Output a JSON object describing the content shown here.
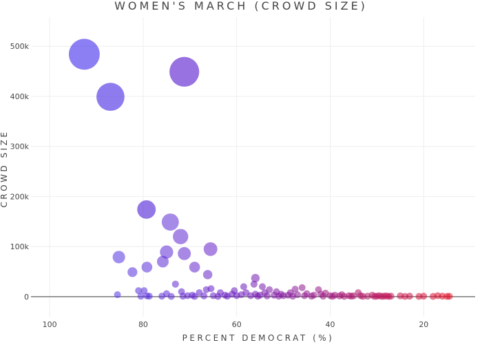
{
  "chart_data": {
    "type": "scatter",
    "title": "WOMEN'S MARCH (CROWD SIZE)",
    "xlabel": "PERCENT DEMOCRAT (%)",
    "ylabel": "CROWD SIZE",
    "xlim": [
      104,
      9
    ],
    "ylim": [
      -40000,
      558000
    ],
    "x_reversed": true,
    "grid": true,
    "marker_size_encodes": "crowd size",
    "marker_color_encodes": "percent democrat",
    "colors": {
      "high_democrat": "#4b3cf0",
      "mid": "#6a1cc0",
      "low_democrat": "#e0102a",
      "zeroline": "#777777",
      "grid": "#eeeeee"
    },
    "xticks": [
      {
        "v": 100,
        "label": "100"
      },
      {
        "v": 80,
        "label": "80"
      },
      {
        "v": 60,
        "label": "60"
      },
      {
        "v": 40,
        "label": "40"
      },
      {
        "v": 20,
        "label": "20"
      }
    ],
    "yticks": [
      {
        "v": 0,
        "label": "0"
      },
      {
        "v": 100000,
        "label": "100k"
      },
      {
        "v": 200000,
        "label": "200k"
      },
      {
        "v": 300000,
        "label": "300k"
      },
      {
        "v": 400000,
        "label": "400k"
      },
      {
        "v": 500000,
        "label": "500k"
      }
    ],
    "points": [
      [
        92.6,
        484000
      ],
      [
        87.0,
        399000
      ],
      [
        71.2,
        449000
      ],
      [
        79.3,
        174000
      ],
      [
        74.2,
        149000
      ],
      [
        72.0,
        120000
      ],
      [
        75.0,
        89000
      ],
      [
        71.2,
        86000
      ],
      [
        65.6,
        95000
      ],
      [
        85.2,
        79000
      ],
      [
        79.2,
        59000
      ],
      [
        75.8,
        70000
      ],
      [
        69.0,
        59000
      ],
      [
        66.2,
        44000
      ],
      [
        82.3,
        49000
      ],
      [
        73.1,
        25000
      ],
      [
        56.0,
        37000
      ],
      [
        85.5,
        4000
      ],
      [
        81,
        12000
      ],
      [
        80.5,
        1000
      ],
      [
        79.8,
        12000
      ],
      [
        79.2,
        1500
      ],
      [
        78.7,
        1000
      ],
      [
        76,
        1000
      ],
      [
        75,
        6000
      ],
      [
        74,
        500
      ],
      [
        71.8,
        10000
      ],
      [
        71.5,
        1000
      ],
      [
        70.5,
        2000
      ],
      [
        69.5,
        3000
      ],
      [
        69,
        500
      ],
      [
        68,
        8000
      ],
      [
        67,
        1500
      ],
      [
        66.5,
        14000
      ],
      [
        65.5,
        16000
      ],
      [
        65,
        2000
      ],
      [
        64,
        500
      ],
      [
        63.5,
        8000
      ],
      [
        62.5,
        3000
      ],
      [
        62,
        1000
      ],
      [
        61,
        5000
      ],
      [
        60.5,
        12000
      ],
      [
        60,
        2000
      ],
      [
        59,
        4000
      ],
      [
        58.5,
        20000
      ],
      [
        58,
        8000
      ],
      [
        57,
        2000
      ],
      [
        56.3,
        25000
      ],
      [
        56,
        5000
      ],
      [
        55.5,
        1000
      ],
      [
        55,
        3000
      ],
      [
        54.5,
        20000
      ],
      [
        54,
        8000
      ],
      [
        53.5,
        1500
      ],
      [
        53,
        14000
      ],
      [
        52,
        3000
      ],
      [
        51.5,
        10000
      ],
      [
        51,
        1000
      ],
      [
        50.5,
        5000
      ],
      [
        50,
        2000
      ],
      [
        49,
        3000
      ],
      [
        48.5,
        8000
      ],
      [
        48,
        1000
      ],
      [
        47.5,
        15000
      ],
      [
        47,
        4000
      ],
      [
        46,
        18000
      ],
      [
        45.5,
        2000
      ],
      [
        45,
        6000
      ],
      [
        44,
        1000
      ],
      [
        43.5,
        3000
      ],
      [
        42.5,
        14000
      ],
      [
        42,
        5000
      ],
      [
        41.5,
        1000
      ],
      [
        41,
        7000
      ],
      [
        40,
        2000
      ],
      [
        39.5,
        500
      ],
      [
        39,
        3000
      ],
      [
        38,
        1500
      ],
      [
        37.5,
        4000
      ],
      [
        37,
        500
      ],
      [
        36,
        2000
      ],
      [
        35.5,
        1000
      ],
      [
        35,
        1500
      ],
      [
        34,
        8000
      ],
      [
        33.5,
        2000
      ],
      [
        33,
        500
      ],
      [
        32,
        1000
      ],
      [
        31,
        3000
      ],
      [
        30.5,
        500
      ],
      [
        30,
        1000
      ],
      [
        29.5,
        2000
      ],
      [
        29,
        500
      ],
      [
        28.5,
        1000
      ],
      [
        28,
        1500
      ],
      [
        27.5,
        500
      ],
      [
        27,
        1000
      ],
      [
        25,
        1500
      ],
      [
        24,
        500
      ],
      [
        23,
        1000
      ],
      [
        21,
        500
      ],
      [
        20,
        1000
      ],
      [
        18,
        500
      ],
      [
        17,
        2000
      ],
      [
        16,
        1000
      ],
      [
        15,
        500
      ],
      [
        14.5,
        700
      ]
    ]
  }
}
